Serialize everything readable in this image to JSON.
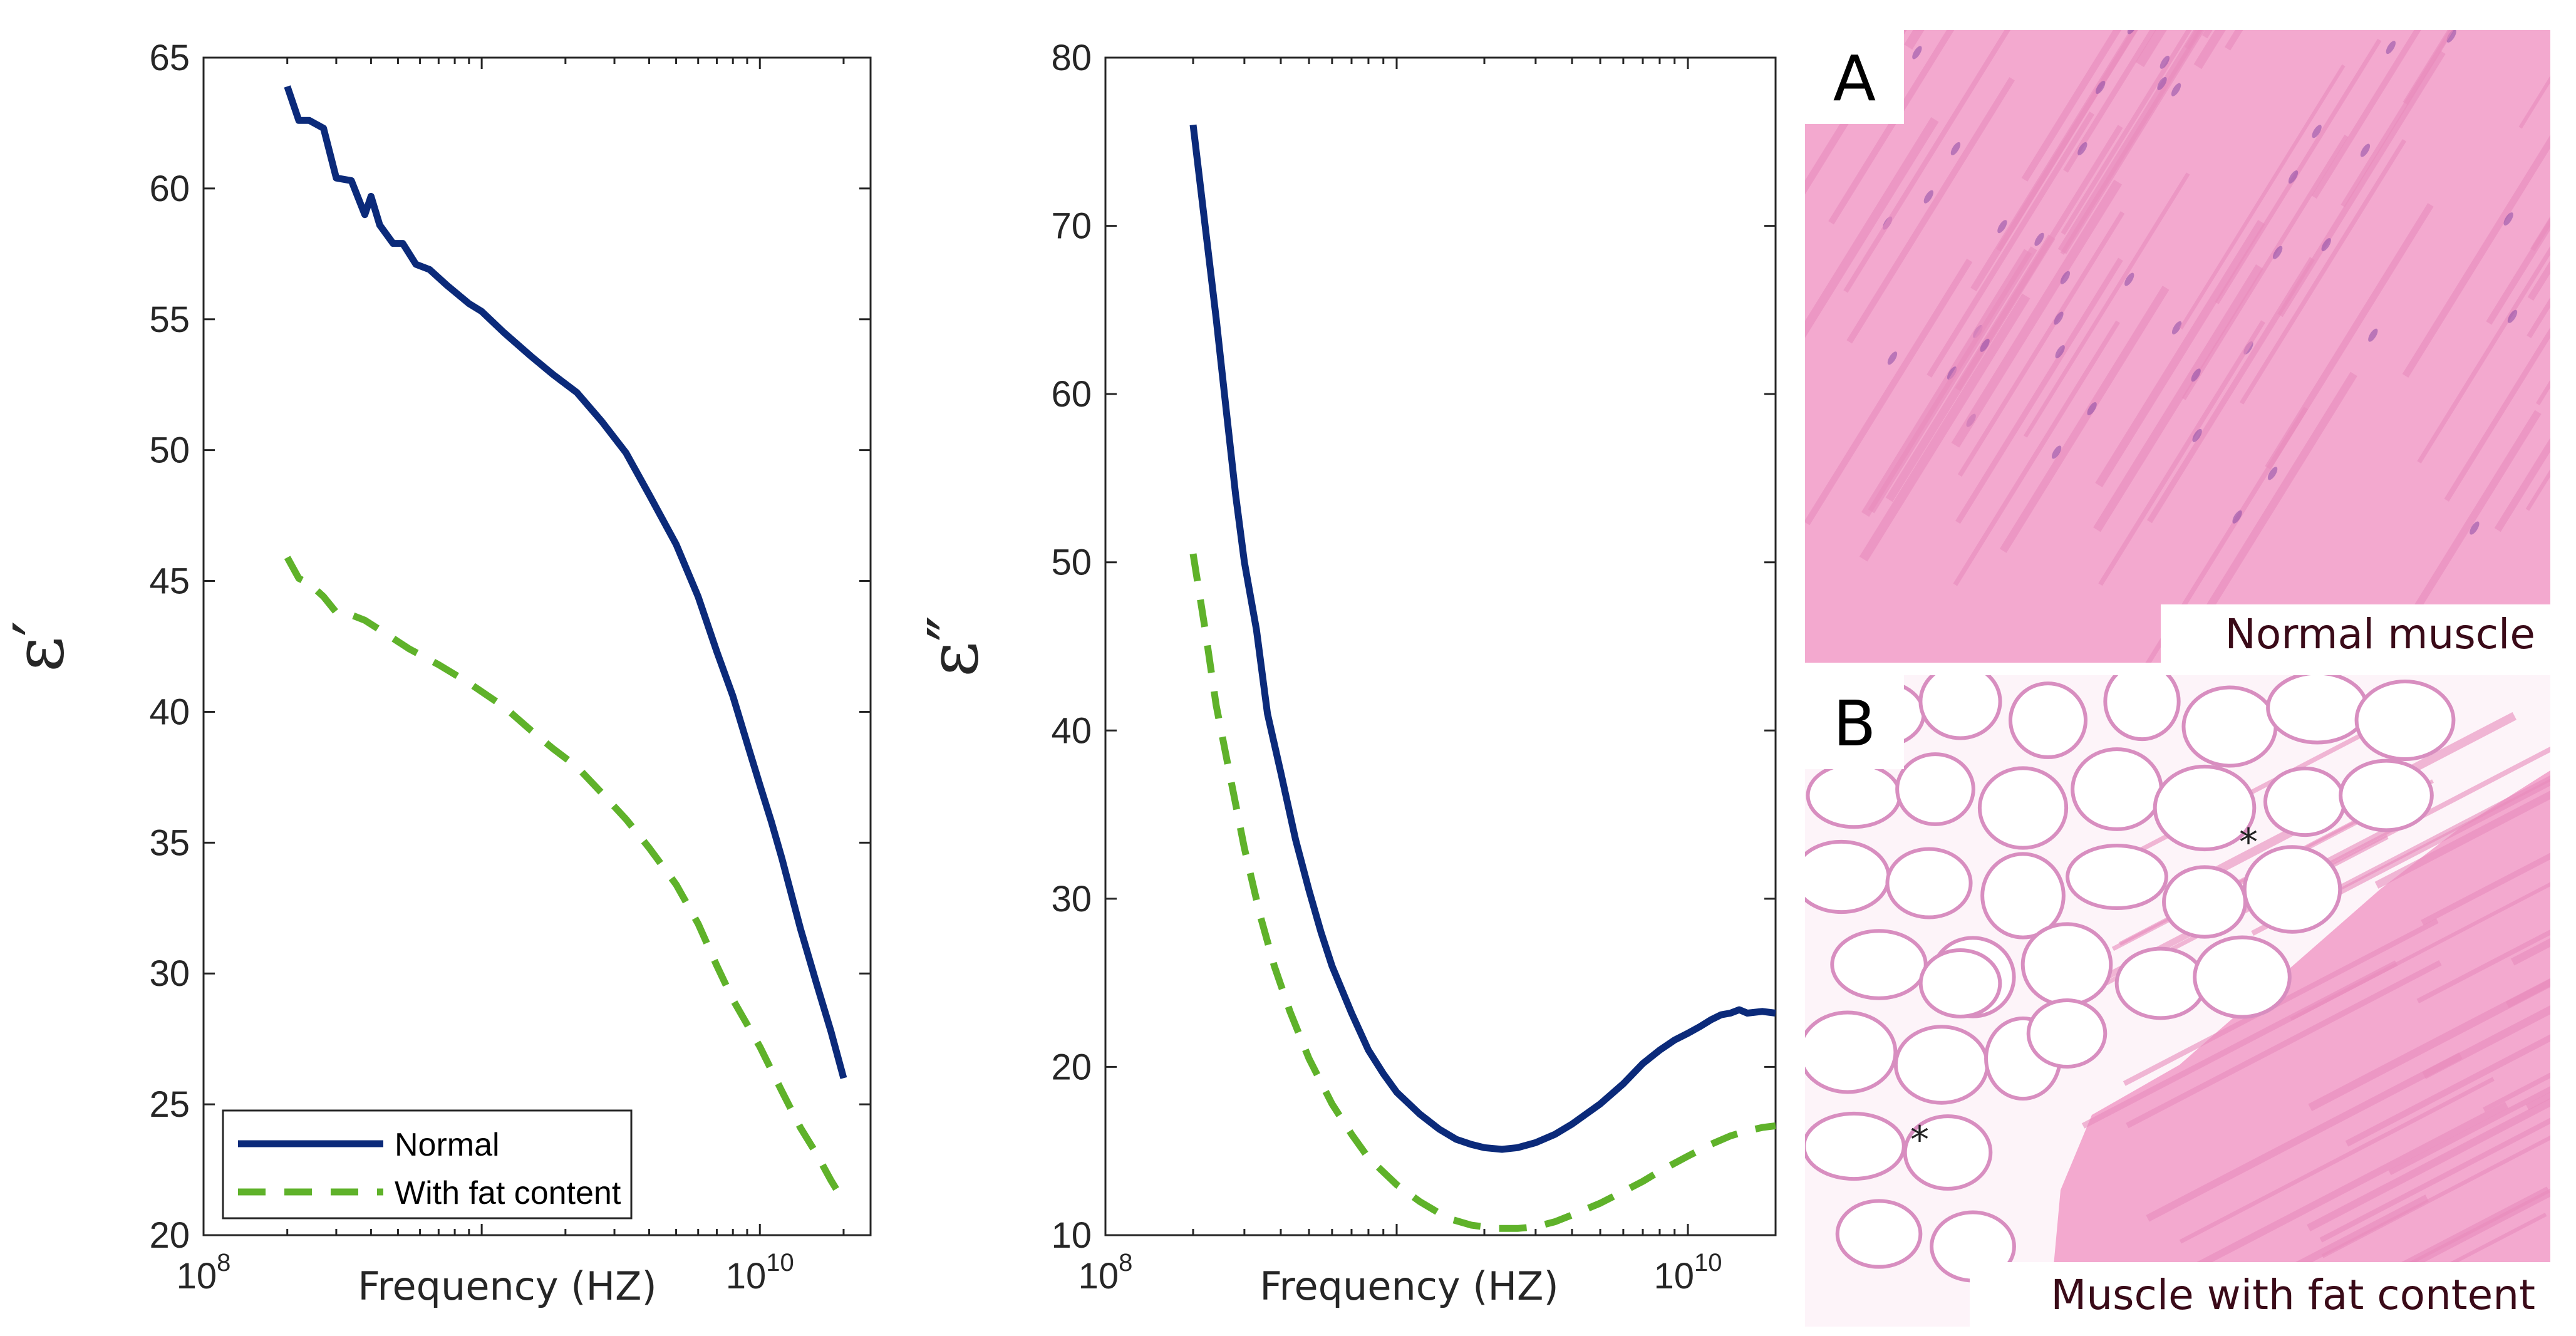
{
  "colors": {
    "normal": "#0b2a7a",
    "fat": "#5fb22a",
    "muscle_tissue": "#f3a9cf",
    "muscle_streak": "#e98cbd",
    "fat_cell": "#fdf4f9",
    "fat_border": "#d88ec0"
  },
  "chart_data": [
    {
      "type": "line",
      "id": "eps-real",
      "xscale": "log",
      "xlim": [
        100000000,
        25000000000
      ],
      "ylim": [
        20,
        65
      ],
      "xlabel": "Frequency (HZ)",
      "ylabel": "ε′",
      "yticks": [
        "20",
        "25",
        "30",
        "35",
        "40",
        "45",
        "50",
        "55",
        "60",
        "65"
      ],
      "xtick_labels": [
        {
          "base": "10",
          "exp": "8",
          "value": 100000000
        },
        {
          "base": "10",
          "exp": "10",
          "value": 10000000000
        }
      ],
      "legend": {
        "position": "bottom-left",
        "entries": [
          "Normal",
          "With fat content"
        ]
      },
      "series": [
        {
          "name": "Normal",
          "style": "solid",
          "x": [
            200000000,
            220000000,
            240000000,
            270000000,
            300000000,
            340000000,
            380000000,
            400000000,
            430000000,
            480000000,
            520000000,
            580000000,
            650000000,
            750000000,
            900000000,
            1000000000,
            1200000000,
            1500000000,
            1800000000,
            2200000000,
            2700000000,
            3300000000,
            4000000000,
            5000000000,
            6000000000,
            7000000000,
            8000000000,
            9000000000,
            10000000000,
            11000000000,
            12000000000,
            14000000000,
            16000000000,
            18000000000,
            20000000000
          ],
          "values": [
            63.9,
            62.6,
            62.6,
            62.3,
            60.4,
            60.3,
            59.0,
            59.7,
            58.6,
            57.9,
            57.9,
            57.1,
            56.9,
            56.3,
            55.6,
            55.3,
            54.5,
            53.6,
            52.9,
            52.2,
            51.1,
            49.9,
            48.3,
            46.4,
            44.4,
            42.3,
            40.6,
            38.8,
            37.2,
            35.8,
            34.4,
            31.7,
            29.6,
            27.8,
            26.0
          ]
        },
        {
          "name": "With fat content",
          "style": "dashed",
          "x": [
            200000000,
            220000000,
            240000000,
            270000000,
            300000000,
            340000000,
            380000000,
            450000000,
            550000000,
            700000000,
            900000000,
            1200000000,
            1500000000,
            1800000000,
            2200000000,
            2700000000,
            3300000000,
            4000000000,
            5000000000,
            6000000000,
            7000000000,
            8000000000,
            10000000000,
            12000000000,
            14000000000,
            16000000000,
            18000000000,
            20000000000
          ],
          "values": [
            45.9,
            45.1,
            44.9,
            44.4,
            43.8,
            43.7,
            43.5,
            43.0,
            42.4,
            41.8,
            41.1,
            40.2,
            39.3,
            38.6,
            37.9,
            36.9,
            35.9,
            34.8,
            33.4,
            31.9,
            30.3,
            29.0,
            27.2,
            25.5,
            24.1,
            23.1,
            22.1,
            21.3
          ]
        }
      ]
    },
    {
      "type": "line",
      "id": "eps-imag",
      "xscale": "log",
      "xlim": [
        100000000,
        20000000000
      ],
      "ylim": [
        10,
        80
      ],
      "xlabel": "Frequency (HZ)",
      "ylabel": "ε″",
      "yticks": [
        "10",
        "20",
        "30",
        "40",
        "50",
        "60",
        "70",
        "80"
      ],
      "xtick_labels": [
        {
          "base": "10",
          "exp": "8",
          "value": 100000000
        },
        {
          "base": "10",
          "exp": "10",
          "value": 10000000000
        }
      ],
      "series": [
        {
          "name": "Normal",
          "style": "solid",
          "x": [
            200000000,
            220000000,
            240000000,
            260000000,
            280000000,
            300000000,
            330000000,
            360000000,
            400000000,
            450000000,
            500000000,
            550000000,
            600000000,
            700000000,
            800000000,
            900000000,
            1000000000,
            1200000000,
            1400000000,
            1600000000,
            1800000000,
            2000000000,
            2300000000,
            2600000000,
            3000000000,
            3500000000,
            4000000000,
            5000000000,
            6000000000,
            7000000000,
            8000000000,
            9000000000,
            10000000000,
            11000000000,
            12000000000,
            13000000000,
            14000000000,
            15000000000,
            16000000000,
            18000000000,
            20000000000
          ],
          "values": [
            76.0,
            70.0,
            64.5,
            59.0,
            54.0,
            50.0,
            46.0,
            41.0,
            37.5,
            33.5,
            30.5,
            28.0,
            26.0,
            23.2,
            21.0,
            19.6,
            18.5,
            17.2,
            16.3,
            15.7,
            15.4,
            15.2,
            15.1,
            15.2,
            15.5,
            16.0,
            16.6,
            17.8,
            19.0,
            20.2,
            21.0,
            21.6,
            22.0,
            22.4,
            22.8,
            23.1,
            23.2,
            23.4,
            23.2,
            23.3,
            23.2
          ]
        },
        {
          "name": "With fat content",
          "style": "dashed",
          "x": [
            200000000,
            220000000,
            240000000,
            270000000,
            300000000,
            340000000,
            380000000,
            430000000,
            500000000,
            600000000,
            700000000,
            800000000,
            1000000000,
            1200000000,
            1500000000,
            1800000000,
            2200000000,
            2600000000,
            3000000000,
            3500000000,
            4000000000,
            5000000000,
            6000000000,
            7000000000,
            8000000000,
            10000000000,
            12000000000,
            14000000000,
            16000000000,
            18000000000,
            20000000000
          ],
          "values": [
            50.5,
            46.0,
            41.5,
            37.0,
            33.0,
            29.0,
            26.0,
            23.3,
            20.5,
            17.8,
            16.0,
            14.6,
            13.0,
            12.0,
            11.0,
            10.6,
            10.4,
            10.4,
            10.5,
            10.8,
            11.2,
            11.9,
            12.6,
            13.2,
            13.8,
            14.7,
            15.4,
            15.9,
            16.2,
            16.4,
            16.5
          ]
        }
      ]
    }
  ],
  "histology": {
    "a": {
      "letter": "A",
      "caption": "Normal muscle"
    },
    "b": {
      "letter": "B",
      "caption": "Muscle with fat content"
    }
  }
}
